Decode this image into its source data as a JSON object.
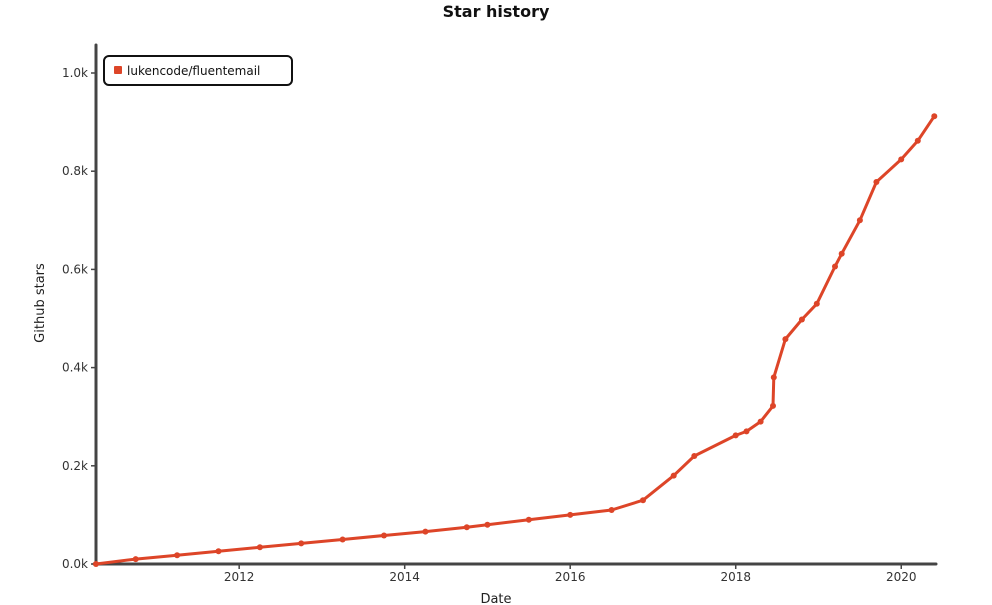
{
  "chart_data": {
    "type": "line",
    "title": "Star history",
    "xlabel": "Date",
    "ylabel": "Github stars",
    "xlim": [
      2010.27,
      2020.42
    ],
    "ylim": [
      0,
      1000
    ],
    "x_ticks": [
      "2012",
      "2014",
      "2016",
      "2018",
      "2020"
    ],
    "y_ticks": [
      "0.0k",
      "0.2k",
      "0.4k",
      "0.6k",
      "0.8k",
      "1.0k"
    ],
    "legend_position": "top-left",
    "grid": false,
    "series": [
      {
        "name": "lukencode/fluentemail",
        "color": "#dd4528",
        "x": [
          2010.27,
          2010.75,
          2011.25,
          2011.75,
          2012.25,
          2012.75,
          2013.25,
          2013.75,
          2014.25,
          2014.75,
          2015.0,
          2015.5,
          2016.0,
          2016.5,
          2016.88,
          2017.25,
          2017.5,
          2018.0,
          2018.13,
          2018.3,
          2018.45,
          2018.46,
          2018.6,
          2018.8,
          2018.98,
          2019.2,
          2019.28,
          2019.5,
          2019.7,
          2020.0,
          2020.2,
          2020.4
        ],
        "y": [
          0,
          10,
          18,
          26,
          34,
          42,
          50,
          58,
          66,
          75,
          80,
          90,
          100,
          110,
          130,
          180,
          220,
          262,
          270,
          290,
          322,
          380,
          458,
          498,
          530,
          606,
          632,
          700,
          778,
          824,
          862,
          912
        ]
      }
    ]
  }
}
